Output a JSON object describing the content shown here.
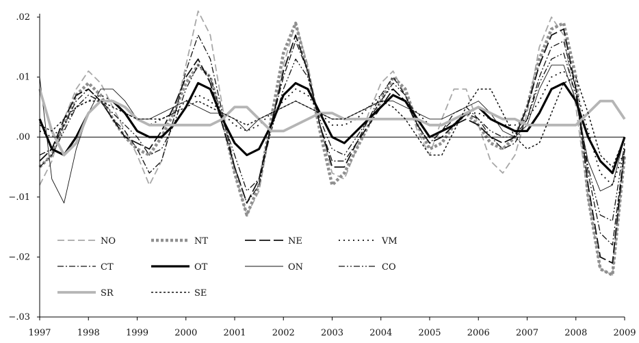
{
  "chart_data": {
    "type": "line",
    "x_ticks": [
      "1997",
      "1998",
      "1999",
      "2000",
      "2001",
      "2002",
      "2003",
      "2004",
      "2005",
      "2006",
      "2007",
      "2008",
      "2009"
    ],
    "y_ticks": [
      ".02",
      ".01",
      ".00",
      "−.01",
      "−.02",
      "−.03"
    ],
    "xlim": [
      1997,
      2009
    ],
    "ylim": [
      -0.03,
      0.02
    ],
    "grid": false,
    "legend_position": "bottom-left",
    "series": [
      {
        "name": "NO",
        "color": "#a8a8a8",
        "dash": "10,5",
        "width": 1.8,
        "x": [
          1997,
          1997.25,
          1997.5,
          1997.75,
          1998,
          1998.25,
          1998.5,
          1998.75,
          1999,
          1999.25,
          1999.5,
          1999.75,
          2000,
          2000.25,
          2000.5,
          2000.75,
          2001,
          2001.25,
          2001.5,
          2001.75,
          2002,
          2002.25,
          2002.5,
          2002.75,
          2003,
          2003.25,
          2003.5,
          2003.75,
          2004,
          2004.25,
          2004.5,
          2004.75,
          2005,
          2005.25,
          2005.5,
          2005.75,
          2006,
          2006.25,
          2006.5,
          2006.75,
          2007,
          2007.25,
          2007.5,
          2007.75,
          2008,
          2008.25,
          2008.5,
          2008.75,
          2009
        ],
        "y": [
          -0.008,
          -0.004,
          0.003,
          0.008,
          0.011,
          0.009,
          0.005,
          0.001,
          -0.003,
          -0.008,
          -0.004,
          0.003,
          0.012,
          0.021,
          0.017,
          0.005,
          -0.006,
          -0.013,
          -0.009,
          0.002,
          0.012,
          0.019,
          0.012,
          0.002,
          -0.006,
          -0.007,
          -0.002,
          0.004,
          0.009,
          0.011,
          0.007,
          0.001,
          -0.003,
          0.003,
          0.008,
          0.008,
          0.002,
          -0.004,
          -0.006,
          -0.003,
          0.004,
          0.015,
          0.02,
          0.017,
          0.005,
          -0.01,
          -0.022,
          -0.023,
          -0.003
        ]
      },
      {
        "name": "NT",
        "color": "#8f8f8f",
        "dash": "4,3",
        "width": 4.5,
        "x": [
          1997,
          1997.25,
          1997.5,
          1997.75,
          1998,
          1998.25,
          1998.5,
          1998.75,
          1999,
          1999.25,
          1999.5,
          1999.75,
          2000,
          2000.25,
          2000.5,
          2000.75,
          2001,
          2001.25,
          2001.5,
          2001.75,
          2002,
          2002.25,
          2002.5,
          2002.75,
          2003,
          2003.25,
          2003.5,
          2003.75,
          2004,
          2004.25,
          2004.5,
          2004.75,
          2005,
          2005.25,
          2005.5,
          2005.75,
          2006,
          2006.25,
          2006.5,
          2006.75,
          2007,
          2007.25,
          2007.5,
          2007.75,
          2008,
          2008.25,
          2008.5,
          2008.75,
          2009
        ],
        "y": [
          -0.005,
          -0.003,
          0.002,
          0.007,
          0.009,
          0.007,
          0.003,
          0.0,
          -0.002,
          -0.003,
          0.0,
          0.004,
          0.009,
          0.012,
          0.01,
          0.003,
          -0.006,
          -0.013,
          -0.008,
          0.003,
          0.014,
          0.019,
          0.011,
          0.001,
          -0.008,
          -0.006,
          -0.002,
          0.002,
          0.006,
          0.01,
          0.008,
          0.002,
          -0.002,
          -0.001,
          0.002,
          0.004,
          0.002,
          -0.001,
          -0.002,
          0.0,
          0.005,
          0.013,
          0.018,
          0.019,
          0.01,
          -0.01,
          -0.022,
          -0.023,
          -0.003
        ]
      },
      {
        "name": "NE",
        "color": "#111111",
        "dash": "16,5",
        "width": 1.8,
        "x": [
          1997,
          1997.25,
          1997.5,
          1997.75,
          1998,
          1998.25,
          1998.5,
          1998.75,
          1999,
          1999.25,
          1999.5,
          1999.75,
          2000,
          2000.25,
          2000.5,
          2000.75,
          2001,
          2001.25,
          2001.5,
          2001.75,
          2002,
          2002.25,
          2002.5,
          2002.75,
          2003,
          2003.25,
          2003.5,
          2003.75,
          2004,
          2004.25,
          2004.5,
          2004.75,
          2005,
          2005.25,
          2005.5,
          2005.75,
          2006,
          2006.25,
          2006.5,
          2006.75,
          2007,
          2007.25,
          2007.5,
          2007.75,
          2008,
          2008.25,
          2008.5,
          2008.75,
          2009
        ],
        "y": [
          -0.004,
          -0.002,
          0.003,
          0.007,
          0.008,
          0.006,
          0.003,
          0.0,
          -0.001,
          -0.002,
          0.001,
          0.005,
          0.01,
          0.013,
          0.009,
          0.002,
          -0.005,
          -0.011,
          -0.007,
          0.002,
          0.011,
          0.017,
          0.011,
          0.002,
          -0.005,
          -0.005,
          -0.001,
          0.002,
          0.005,
          0.008,
          0.006,
          0.002,
          -0.001,
          0.0,
          0.002,
          0.003,
          0.002,
          0.0,
          -0.001,
          0.0,
          0.005,
          0.012,
          0.017,
          0.018,
          0.008,
          -0.008,
          -0.02,
          -0.021,
          -0.002
        ]
      },
      {
        "name": "VM",
        "color": "#111111",
        "dash": "2,5",
        "width": 1.8,
        "x": [
          1997,
          1997.25,
          1997.5,
          1997.75,
          1998,
          1998.25,
          1998.5,
          1998.75,
          1999,
          1999.25,
          1999.5,
          1999.75,
          2000,
          2000.25,
          2000.5,
          2000.75,
          2001,
          2001.25,
          2001.5,
          2001.75,
          2002,
          2002.25,
          2002.5,
          2002.75,
          2003,
          2003.25,
          2003.5,
          2003.75,
          2004,
          2004.25,
          2004.5,
          2004.75,
          2005,
          2005.25,
          2005.5,
          2005.75,
          2006,
          2006.25,
          2006.5,
          2006.75,
          2007,
          2007.25,
          2007.5,
          2007.75,
          2008,
          2008.25,
          2008.5,
          2008.75,
          2009
        ],
        "y": [
          0.001,
          0.0,
          0.002,
          0.005,
          0.006,
          0.007,
          0.006,
          0.004,
          0.003,
          0.002,
          0.003,
          0.004,
          0.006,
          0.007,
          0.006,
          0.004,
          0.002,
          0.001,
          0.002,
          0.004,
          0.006,
          0.008,
          0.007,
          0.004,
          0.002,
          0.002,
          0.003,
          0.005,
          0.007,
          0.008,
          0.006,
          0.004,
          0.002,
          0.002,
          0.003,
          0.004,
          0.004,
          0.003,
          0.002,
          0.002,
          0.003,
          0.006,
          0.01,
          0.011,
          0.008,
          0.001,
          -0.006,
          -0.008,
          -0.002
        ]
      },
      {
        "name": "CT",
        "color": "#111111",
        "dash": "9,3,2,3",
        "width": 1.3,
        "x": [
          1997,
          1997.25,
          1997.5,
          1997.75,
          1998,
          1998.25,
          1998.5,
          1998.75,
          1999,
          1999.25,
          1999.5,
          1999.75,
          2000,
          2000.25,
          2000.5,
          2000.75,
          2001,
          2001.25,
          2001.5,
          2001.75,
          2002,
          2002.25,
          2002.5,
          2002.75,
          2003,
          2003.25,
          2003.5,
          2003.75,
          2004,
          2004.25,
          2004.5,
          2004.75,
          2005,
          2005.25,
          2005.5,
          2005.75,
          2006,
          2006.25,
          2006.5,
          2006.75,
          2007,
          2007.25,
          2007.5,
          2007.75,
          2008,
          2008.25,
          2008.5,
          2008.75,
          2009
        ],
        "y": [
          -0.003,
          -0.002,
          0.002,
          0.006,
          0.008,
          0.006,
          0.003,
          0.001,
          -0.002,
          -0.006,
          -0.004,
          0.003,
          0.011,
          0.017,
          0.013,
          0.004,
          -0.005,
          -0.011,
          -0.008,
          0.002,
          0.01,
          0.016,
          0.011,
          0.002,
          -0.004,
          -0.004,
          -0.001,
          0.003,
          0.007,
          0.01,
          0.007,
          0.002,
          -0.001,
          0.001,
          0.004,
          0.005,
          0.003,
          0.0,
          -0.002,
          -0.001,
          0.003,
          0.01,
          0.015,
          0.016,
          0.008,
          -0.006,
          -0.016,
          -0.018,
          -0.002
        ]
      },
      {
        "name": "OT",
        "color": "#000000",
        "dash": "",
        "width": 3.2,
        "x": [
          1997,
          1997.25,
          1997.5,
          1997.75,
          1998,
          1998.25,
          1998.5,
          1998.75,
          1999,
          1999.25,
          1999.5,
          1999.75,
          2000,
          2000.25,
          2000.5,
          2000.75,
          2001,
          2001.25,
          2001.5,
          2001.75,
          2002,
          2002.25,
          2002.5,
          2002.75,
          2003,
          2003.25,
          2003.5,
          2003.75,
          2004,
          2004.25,
          2004.5,
          2004.75,
          2005,
          2005.25,
          2005.5,
          2005.75,
          2006,
          2006.25,
          2006.5,
          2006.75,
          2007,
          2007.25,
          2007.5,
          2007.75,
          2008,
          2008.25,
          2008.5,
          2008.75,
          2009
        ],
        "y": [
          0.003,
          -0.002,
          -0.003,
          0.0,
          0.004,
          0.006,
          0.006,
          0.004,
          0.001,
          0.0,
          0.0,
          0.002,
          0.005,
          0.009,
          0.008,
          0.003,
          -0.001,
          -0.003,
          -0.002,
          0.002,
          0.007,
          0.009,
          0.008,
          0.004,
          0.0,
          -0.001,
          0.001,
          0.003,
          0.005,
          0.007,
          0.006,
          0.003,
          0.0,
          0.001,
          0.002,
          0.004,
          0.005,
          0.003,
          0.002,
          0.001,
          0.001,
          0.004,
          0.008,
          0.009,
          0.006,
          0.0,
          -0.004,
          -0.006,
          0.0
        ]
      },
      {
        "name": "ON",
        "color": "#111111",
        "dash": "",
        "width": 0.9,
        "x": [
          1997,
          1997.25,
          1997.5,
          1997.75,
          1998,
          1998.25,
          1998.5,
          1998.75,
          1999,
          1999.25,
          1999.5,
          1999.75,
          2000,
          2000.25,
          2000.5,
          2000.75,
          2001,
          2001.25,
          2001.5,
          2001.75,
          2002,
          2002.25,
          2002.5,
          2002.75,
          2003,
          2003.25,
          2003.5,
          2003.75,
          2004,
          2004.25,
          2004.5,
          2004.75,
          2005,
          2005.25,
          2005.5,
          2005.75,
          2006,
          2006.25,
          2006.5,
          2006.75,
          2007,
          2007.25,
          2007.5,
          2007.75,
          2008,
          2008.25,
          2008.5,
          2008.75,
          2009
        ],
        "y": [
          0.01,
          -0.007,
          -0.011,
          -0.002,
          0.004,
          0.008,
          0.008,
          0.006,
          0.003,
          0.003,
          0.004,
          0.005,
          0.006,
          0.005,
          0.004,
          0.004,
          0.003,
          0.001,
          0.003,
          0.004,
          0.005,
          0.006,
          0.005,
          0.004,
          0.003,
          0.003,
          0.004,
          0.005,
          0.006,
          0.006,
          0.005,
          0.004,
          0.003,
          0.003,
          0.004,
          0.005,
          0.006,
          0.004,
          0.001,
          0.0,
          0.002,
          0.008,
          0.012,
          0.012,
          0.006,
          -0.004,
          -0.009,
          -0.008,
          0.0
        ]
      },
      {
        "name": "CO",
        "color": "#111111",
        "dash": "9,3,2,3,2,3",
        "width": 1.3,
        "x": [
          1997,
          1997.25,
          1997.5,
          1997.75,
          1998,
          1998.25,
          1998.5,
          1998.75,
          1999,
          1999.25,
          1999.5,
          1999.75,
          2000,
          2000.25,
          2000.5,
          2000.75,
          2001,
          2001.25,
          2001.5,
          2001.75,
          2002,
          2002.25,
          2002.5,
          2002.75,
          2003,
          2003.25,
          2003.5,
          2003.75,
          2004,
          2004.25,
          2004.5,
          2004.75,
          2005,
          2005.25,
          2005.5,
          2005.75,
          2006,
          2006.25,
          2006.5,
          2006.75,
          2007,
          2007.25,
          2007.5,
          2007.75,
          2008,
          2008.25,
          2008.5,
          2008.75,
          2009
        ],
        "y": [
          -0.005,
          -0.003,
          0.001,
          0.005,
          0.007,
          0.006,
          0.004,
          0.002,
          0.0,
          -0.003,
          -0.002,
          0.002,
          0.008,
          0.012,
          0.01,
          0.003,
          -0.003,
          -0.009,
          -0.007,
          0.001,
          0.008,
          0.013,
          0.01,
          0.003,
          -0.002,
          -0.003,
          0.0,
          0.003,
          0.006,
          0.009,
          0.007,
          0.003,
          0.0,
          0.001,
          0.003,
          0.004,
          0.003,
          0.001,
          0.0,
          0.0,
          0.003,
          0.009,
          0.013,
          0.014,
          0.007,
          -0.005,
          -0.013,
          -0.014,
          -0.001
        ]
      },
      {
        "name": "SR",
        "color": "#b5b5b5",
        "dash": "",
        "width": 3.8,
        "x": [
          1997,
          1997.25,
          1997.5,
          1997.75,
          1998,
          1998.25,
          1998.5,
          1998.75,
          1999,
          1999.25,
          1999.5,
          1999.75,
          2000,
          2000.25,
          2000.5,
          2000.75,
          2001,
          2001.25,
          2001.5,
          2001.75,
          2002,
          2002.25,
          2002.5,
          2002.75,
          2003,
          2003.25,
          2003.5,
          2003.75,
          2004,
          2004.25,
          2004.5,
          2004.75,
          2005,
          2005.25,
          2005.5,
          2005.75,
          2006,
          2006.25,
          2006.5,
          2006.75,
          2007,
          2007.25,
          2007.5,
          2007.75,
          2008,
          2008.25,
          2008.5,
          2008.75,
          2009
        ],
        "y": [
          0.008,
          0.001,
          -0.003,
          -0.001,
          0.004,
          0.006,
          0.006,
          0.005,
          0.003,
          0.002,
          0.002,
          0.002,
          0.002,
          0.002,
          0.002,
          0.003,
          0.005,
          0.005,
          0.003,
          0.001,
          0.001,
          0.002,
          0.003,
          0.004,
          0.004,
          0.003,
          0.003,
          0.003,
          0.003,
          0.003,
          0.003,
          0.003,
          0.002,
          0.002,
          0.003,
          0.004,
          0.005,
          0.004,
          0.003,
          0.003,
          0.002,
          0.002,
          0.002,
          0.002,
          0.002,
          0.004,
          0.006,
          0.006,
          0.003
        ]
      },
      {
        "name": "SE",
        "color": "#111111",
        "dash": "3,3",
        "width": 1.5,
        "x": [
          1997,
          1997.25,
          1997.5,
          1997.75,
          1998,
          1998.25,
          1998.5,
          1998.75,
          1999,
          1999.25,
          1999.5,
          1999.75,
          2000,
          2000.25,
          2000.5,
          2000.75,
          2001,
          2001.25,
          2001.5,
          2001.75,
          2002,
          2002.25,
          2002.5,
          2002.75,
          2003,
          2003.25,
          2003.5,
          2003.75,
          2004,
          2004.25,
          2004.5,
          2004.75,
          2005,
          2005.25,
          2005.5,
          2005.75,
          2006,
          2006.25,
          2006.5,
          2006.75,
          2007,
          2007.25,
          2007.5,
          2007.75,
          2008,
          2008.25,
          2008.5,
          2008.75,
          2009
        ],
        "y": [
          0.002,
          0.001,
          0.003,
          0.005,
          0.006,
          0.006,
          0.005,
          0.004,
          0.003,
          0.003,
          0.003,
          0.004,
          0.005,
          0.006,
          0.005,
          0.004,
          0.003,
          0.002,
          0.003,
          0.004,
          0.005,
          0.006,
          0.005,
          0.004,
          0.003,
          0.003,
          0.004,
          0.005,
          0.006,
          0.005,
          0.003,
          0.0,
          -0.003,
          -0.003,
          0.001,
          0.005,
          0.008,
          0.008,
          0.004,
          0.0,
          -0.002,
          -0.001,
          0.004,
          0.009,
          0.01,
          0.004,
          -0.003,
          -0.005,
          0.0
        ]
      }
    ]
  }
}
